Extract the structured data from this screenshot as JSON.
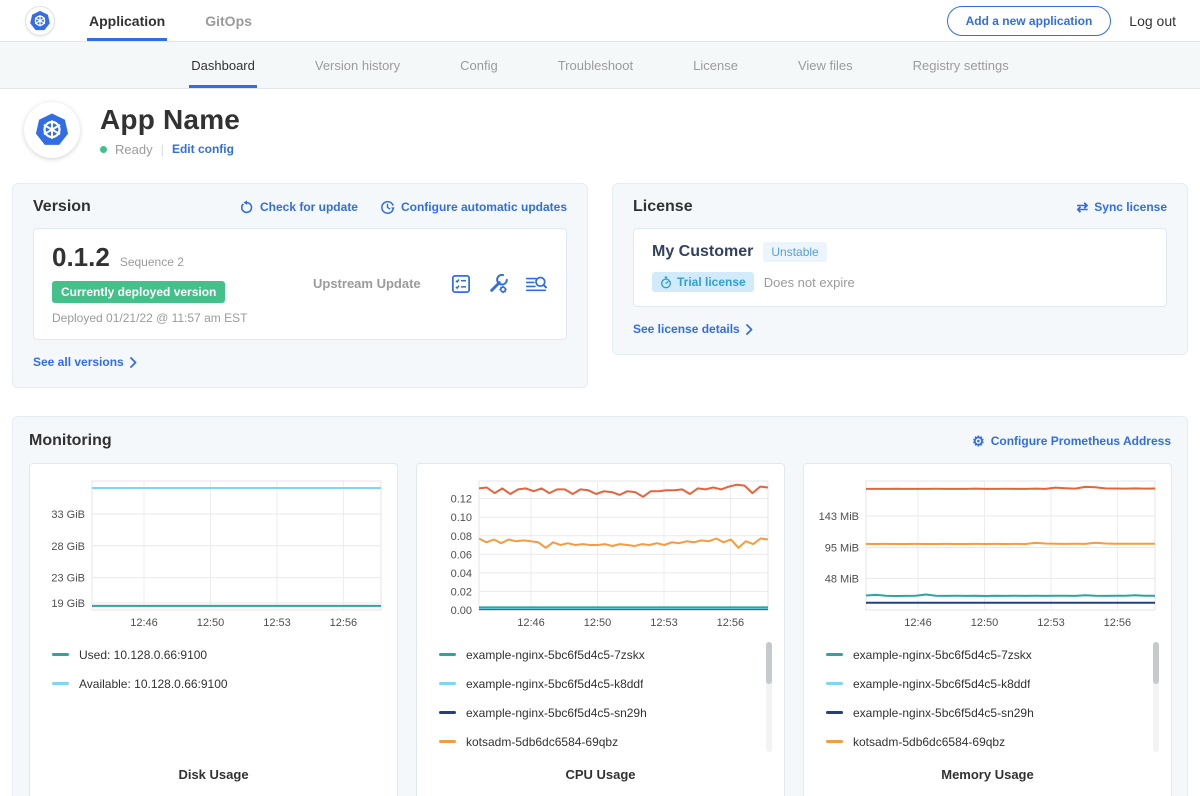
{
  "colors": {
    "accent_blue": "#326de6",
    "green_badge": "#44c08a",
    "teal": "#2aa5a2",
    "light_blue": "#7ed6f2",
    "navy": "#23407f",
    "orange": "#f79b40",
    "red_orange": "#e8633c",
    "muted_text": "#9b9b9b"
  },
  "top_nav": {
    "items": [
      {
        "label": "Application",
        "active": true
      },
      {
        "label": "GitOps",
        "active": false
      }
    ],
    "add_app_button": "Add a new application",
    "logout_label": "Log out"
  },
  "sub_nav": {
    "tabs": [
      {
        "label": "Dashboard",
        "active": true
      },
      {
        "label": "Version history",
        "active": false
      },
      {
        "label": "Config",
        "active": false
      },
      {
        "label": "Troubleshoot",
        "active": false
      },
      {
        "label": "License",
        "active": false
      },
      {
        "label": "View files",
        "active": false
      },
      {
        "label": "Registry settings",
        "active": false
      }
    ]
  },
  "app_header": {
    "title": "App Name",
    "status": "Ready",
    "edit_config": "Edit config"
  },
  "version_card": {
    "title": "Version",
    "check_for_update": "Check for update",
    "configure_auto_updates": "Configure automatic updates",
    "version_number": "0.1.2",
    "sequence": "Sequence 2",
    "deployed_badge": "Currently deployed version",
    "deployed_at": "Deployed 01/21/22 @ 11:57 am EST",
    "update_type": "Upstream Update",
    "see_all_versions": "See all versions"
  },
  "license_card": {
    "title": "License",
    "sync_license": "Sync license",
    "customer_name": "My Customer",
    "channel_badge": "Unstable",
    "type_badge": "Trial license",
    "expiry": "Does not expire",
    "see_license_details": "See license details"
  },
  "monitoring": {
    "title": "Monitoring",
    "configure_prometheus": "Configure Prometheus Address",
    "charts": [
      {
        "title": "Disk Usage",
        "has_scrollbar": false,
        "legend": [
          {
            "label": "Used: 10.128.0.66:9100",
            "color": "#2aa5a2"
          },
          {
            "label": "Available: 10.128.0.66:9100",
            "color": "#7ed6f2"
          }
        ],
        "chart_data": {
          "type": "line",
          "ylim": [
            17.9,
            38.2
          ],
          "yticks": [
            {
              "value": 19,
              "label": "19 GiB"
            },
            {
              "value": 23,
              "label": "23 GiB"
            },
            {
              "value": 28,
              "label": "28 GiB"
            },
            {
              "value": 33,
              "label": "33 GiB"
            }
          ],
          "xticks": [
            {
              "pos": 0.18,
              "label": "12:46"
            },
            {
              "pos": 0.41,
              "label": "12:50"
            },
            {
              "pos": 0.64,
              "label": "12:53"
            },
            {
              "pos": 0.87,
              "label": "12:56"
            }
          ],
          "series": [
            {
              "name": "Available: 10.128.0.66:9100",
              "color": "#7ed6f2",
              "values": [
                37.1,
                37.1
              ]
            },
            {
              "name": "Used: 10.128.0.66:9100",
              "color": "#2aa5a2",
              "values": [
                18.55,
                18.55
              ]
            }
          ]
        }
      },
      {
        "title": "CPU Usage",
        "has_scrollbar": true,
        "legend": [
          {
            "label": "example-nginx-5bc6f5d4c5-7zskx",
            "color": "#2aa5a2"
          },
          {
            "label": "example-nginx-5bc6f5d4c5-k8ddf",
            "color": "#7ed6f2"
          },
          {
            "label": "example-nginx-5bc6f5d4c5-sn29h",
            "color": "#23407f"
          },
          {
            "label": "kotsadm-5db6dc6584-69qbz",
            "color": "#f79b40"
          }
        ],
        "chart_data": {
          "type": "line",
          "ylim": [
            0,
            0.139
          ],
          "yticks": [
            {
              "value": 0.0,
              "label": "0.00"
            },
            {
              "value": 0.02,
              "label": "0.02"
            },
            {
              "value": 0.04,
              "label": "0.04"
            },
            {
              "value": 0.06,
              "label": "0.06"
            },
            {
              "value": 0.08,
              "label": "0.08"
            },
            {
              "value": 0.1,
              "label": "0.10"
            },
            {
              "value": 0.12,
              "label": "0.12"
            }
          ],
          "xticks": [
            {
              "pos": 0.18,
              "label": "12:46"
            },
            {
              "pos": 0.41,
              "label": "12:50"
            },
            {
              "pos": 0.64,
              "label": "12:53"
            },
            {
              "pos": 0.87,
              "label": "12:56"
            }
          ],
          "series": [
            {
              "name": "example-nginx-5bc6f5d4c5-sn29h",
              "color": "#23407f",
              "values": [
                0.001,
                0.001
              ]
            },
            {
              "name": "example-nginx-5bc6f5d4c5-k8ddf",
              "color": "#7ed6f2",
              "values": [
                0.0018,
                0.0018
              ]
            },
            {
              "name": "example-nginx-5bc6f5d4c5-7zskx",
              "color": "#2aa5a2",
              "values": [
                0.0028,
                0.0028
              ]
            },
            {
              "name": "kotsadm-5db6dc6584-69qbz",
              "color": "#f79b40",
              "values": [
                0.077,
                0.073,
                0.076,
                0.072,
                0.076,
                0.074,
                0.075,
                0.074,
                0.073,
                0.067,
                0.073,
                0.07,
                0.072,
                0.07,
                0.071,
                0.07,
                0.07,
                0.071,
                0.069,
                0.071,
                0.07,
                0.069,
                0.071,
                0.07,
                0.072,
                0.07,
                0.073,
                0.072,
                0.074,
                0.073,
                0.075,
                0.074,
                0.077,
                0.073,
                0.076,
                0.067,
                0.074,
                0.071,
                0.077,
                0.076
              ]
            },
            {
              "color": "#e8633c",
              "values": [
                0.131,
                0.132,
                0.126,
                0.131,
                0.125,
                0.13,
                0.131,
                0.128,
                0.131,
                0.126,
                0.13,
                0.13,
                0.125,
                0.13,
                0.129,
                0.125,
                0.128,
                0.127,
                0.124,
                0.128,
                0.127,
                0.122,
                0.128,
                0.128,
                0.129,
                0.129,
                0.13,
                0.125,
                0.131,
                0.13,
                0.132,
                0.13,
                0.133,
                0.135,
                0.134,
                0.126,
                0.133,
                0.132
              ]
            }
          ]
        }
      },
      {
        "title": "Memory Usage",
        "has_scrollbar": true,
        "legend": [
          {
            "label": "example-nginx-5bc6f5d4c5-7zskx",
            "color": "#2aa5a2"
          },
          {
            "label": "example-nginx-5bc6f5d4c5-k8ddf",
            "color": "#7ed6f2"
          },
          {
            "label": "example-nginx-5bc6f5d4c5-sn29h",
            "color": "#23407f"
          },
          {
            "label": "kotsadm-5db6dc6584-69qbz",
            "color": "#f79b40"
          }
        ],
        "chart_data": {
          "type": "line",
          "ylim": [
            0,
            196
          ],
          "yticks": [
            {
              "value": 48,
              "label": "48 MiB"
            },
            {
              "value": 95,
              "label": "95 MiB"
            },
            {
              "value": 143,
              "label": "143 MiB"
            }
          ],
          "xticks": [
            {
              "pos": 0.18,
              "label": "12:46"
            },
            {
              "pos": 0.41,
              "label": "12:50"
            },
            {
              "pos": 0.64,
              "label": "12:53"
            },
            {
              "pos": 0.87,
              "label": "12:56"
            }
          ],
          "series": [
            {
              "name": "example-nginx-5bc6f5d4c5-sn29h",
              "color": "#23407f",
              "values": [
                11,
                11
              ]
            },
            {
              "name": "example-nginx-5bc6f5d4c5-7zskx",
              "color": "#2aa5a2",
              "values": [
                22,
                23,
                21.5,
                21.3,
                21.4,
                21.5,
                23.5,
                21.5,
                21.4,
                21.5,
                21.4,
                21.5,
                21.3,
                21.5,
                21.4,
                21.6,
                21.4,
                21.5,
                21.4,
                21.5,
                21.6,
                21.4,
                22.3,
                21.5,
                21.4,
                21.6,
                21.5,
                22.5,
                21.6,
                21.5
              ]
            },
            {
              "name": "kotsadm-5db6dc6584-69qbz",
              "color": "#f79b40",
              "values": [
                100.5,
                100.3,
                100.4,
                100.3,
                100.3,
                100.4,
                100.3,
                100.3,
                100.4,
                100.3,
                100.3,
                100.5,
                100.3,
                100.4,
                100.3,
                100.4,
                100.3,
                102,
                101,
                100.6,
                100.5,
                100.6,
                100.5,
                102.2,
                101,
                100.6,
                100.7,
                100.6,
                100.6,
                100.7
              ]
            },
            {
              "color": "#e8633c",
              "values": [
                184,
                184,
                184,
                184.3,
                184,
                184,
                184,
                184.2,
                184,
                184,
                184,
                184.4,
                184,
                184,
                184.2,
                184,
                184,
                184.5,
                184,
                186,
                185,
                184.5,
                187,
                186.5,
                184.8,
                184.6,
                184.5,
                184.8,
                184.5,
                184.6
              ]
            }
          ]
        }
      }
    ]
  }
}
